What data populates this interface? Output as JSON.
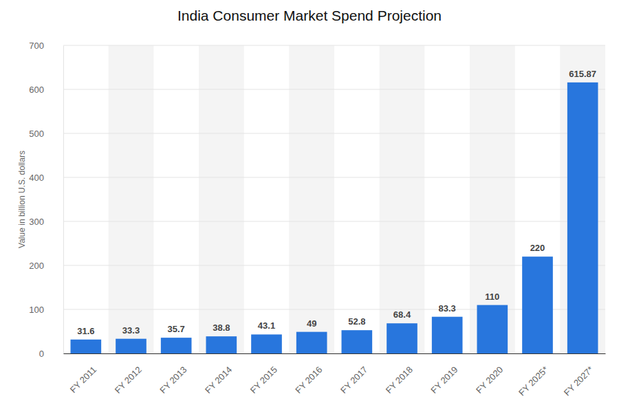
{
  "chart_data": {
    "type": "bar",
    "title": "India Consumer Market Spend Projection",
    "y_label": "Value in billion U.S. dollars",
    "categories": [
      "FY 2011",
      "FY 2012",
      "FY 2013",
      "FY 2014",
      "FY 2015",
      "FY 2016",
      "FY 2017",
      "FY 2018",
      "FY 2019",
      "FY 2020",
      "FY 2025*",
      "FY 2027*"
    ],
    "values": [
      31.6,
      33.3,
      35.7,
      38.8,
      43.1,
      49,
      52.8,
      68.4,
      83.3,
      110,
      220,
      615.87
    ],
    "color": "#2876dd",
    "ylim": [
      0,
      700
    ],
    "yticks": [
      0,
      100,
      200,
      300,
      400,
      500,
      600,
      700
    ],
    "grid": true,
    "data_labels": true
  }
}
